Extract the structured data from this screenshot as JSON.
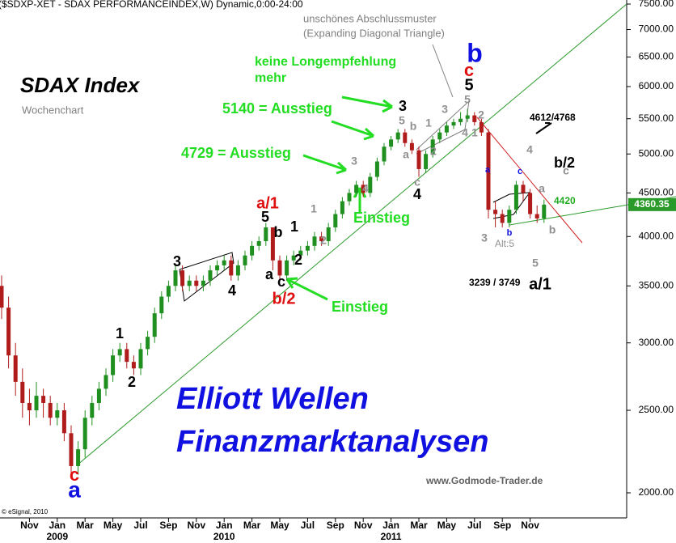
{
  "chart_data": {
    "type": "candlestick",
    "header": "($SDXP-XET - SDAX PERFORMANCEINDEX,W) Dynamic,0:00-24:00",
    "title": "SDAX Index",
    "subtitle": "Wochenchart",
    "categories": [
      null,
      null,
      null,
      null,
      "Nov",
      null,
      null,
      null,
      "Jan",
      null,
      null,
      null,
      "Mar",
      null,
      null,
      null,
      "May",
      null,
      null,
      null,
      "Jul",
      null,
      null,
      null,
      "Sep",
      null,
      null,
      null,
      "Nov",
      null,
      null,
      null,
      "Jan",
      null,
      null,
      null,
      "Mar",
      null,
      null,
      null,
      "May",
      null,
      null,
      null,
      "Jul",
      null,
      null,
      null,
      "Sep",
      null,
      null,
      null,
      "Nov",
      null,
      null,
      null,
      "Jan",
      null,
      null,
      null,
      "Mar",
      null,
      null,
      null,
      "May",
      null,
      null,
      null,
      "Jul",
      null,
      null,
      null,
      "Sep",
      null,
      null,
      null,
      "Nov",
      null,
      null
    ],
    "years": [
      null,
      null,
      null,
      null,
      null,
      null,
      null,
      null,
      "2009",
      null,
      null,
      null,
      null,
      null,
      null,
      null,
      null,
      null,
      null,
      null,
      null,
      null,
      null,
      null,
      null,
      null,
      null,
      null,
      null,
      null,
      null,
      null,
      "2010",
      null,
      null,
      null,
      null,
      null,
      null,
      null,
      null,
      null,
      null,
      null,
      null,
      null,
      null,
      null,
      null,
      null,
      null,
      null,
      null,
      null,
      null,
      null,
      "2011",
      null,
      null,
      null,
      null,
      null,
      null,
      null,
      null,
      null,
      null,
      null,
      null,
      null,
      null,
      null,
      null,
      null,
      null,
      null,
      null,
      null,
      null
    ],
    "open": [
      3500,
      3300,
      2900,
      2700,
      2550,
      2500,
      2600,
      2550,
      2450,
      2500,
      2350,
      2150,
      2250,
      2450,
      2550,
      2650,
      2750,
      2900,
      2950,
      2850,
      2800,
      2950,
      3050,
      3250,
      3400,
      3500,
      3650,
      3500,
      3550,
      3500,
      3550,
      3650,
      3700,
      3750,
      3600,
      3700,
      3800,
      3900,
      3950,
      4100,
      3750,
      3600,
      3750,
      3800,
      3850,
      3900,
      4000,
      3950,
      4100,
      4250,
      4400,
      4500,
      4600,
      4500,
      4700,
      4900,
      5100,
      5200,
      5300,
      5150,
      5050,
      4800,
      5000,
      5200,
      5300,
      5400,
      5450,
      5500,
      5550,
      5450,
      5300,
      4300,
      4250,
      4150,
      4300,
      4600,
      4500,
      4250,
      4200
    ],
    "high": [
      3600,
      3400,
      3000,
      2800,
      2650,
      2700,
      2650,
      2600,
      2550,
      2550,
      2400,
      2300,
      2500,
      2600,
      2700,
      2800,
      2950,
      3000,
      3000,
      2900,
      3000,
      3100,
      3300,
      3450,
      3550,
      3700,
      3700,
      3600,
      3600,
      3600,
      3700,
      3750,
      3800,
      3800,
      3750,
      3850,
      3950,
      4000,
      4150,
      4100,
      3800,
      3800,
      3850,
      3900,
      3950,
      4050,
      4050,
      4150,
      4300,
      4450,
      4550,
      4650,
      4650,
      4750,
      4950,
      5150,
      5250,
      5350,
      5350,
      5200,
      5100,
      5050,
      5250,
      5350,
      5450,
      5500,
      5600,
      5650,
      5600,
      5500,
      5350,
      4400,
      4300,
      4350,
      4650,
      4650,
      4550,
      4350,
      4420
    ],
    "low": [
      3200,
      2800,
      2600,
      2450,
      2400,
      2450,
      2450,
      2400,
      2400,
      2300,
      2100,
      2100,
      2200,
      2400,
      2500,
      2600,
      2700,
      2850,
      2800,
      2750,
      2750,
      2900,
      3000,
      3200,
      3350,
      3450,
      3450,
      3450,
      3450,
      3450,
      3500,
      3600,
      3650,
      3550,
      3550,
      3650,
      3750,
      3850,
      3900,
      3650,
      3550,
      3550,
      3700,
      3750,
      3800,
      3850,
      3900,
      3900,
      4050,
      4200,
      4350,
      4450,
      4450,
      4450,
      4650,
      4850,
      5050,
      5150,
      5100,
      5000,
      4700,
      4750,
      4950,
      5150,
      5250,
      5350,
      5400,
      5450,
      5400,
      5250,
      4200,
      4100,
      4100,
      4100,
      4250,
      4400,
      4200,
      4150,
      4150
    ],
    "close": [
      3300,
      2900,
      2700,
      2550,
      2500,
      2600,
      2550,
      2450,
      2500,
      2350,
      2150,
      2250,
      2450,
      2550,
      2650,
      2750,
      2900,
      2950,
      2850,
      2800,
      2950,
      3050,
      3250,
      3400,
      3500,
      3650,
      3500,
      3550,
      3500,
      3550,
      3650,
      3700,
      3750,
      3600,
      3700,
      3800,
      3900,
      3950,
      4100,
      3750,
      3600,
      3750,
      3800,
      3850,
      3900,
      4000,
      3950,
      4100,
      4250,
      4400,
      4500,
      4600,
      4500,
      4700,
      4900,
      5100,
      5200,
      5300,
      5150,
      5050,
      4800,
      5000,
      5200,
      5300,
      5400,
      5450,
      5500,
      5550,
      5450,
      5300,
      4300,
      4250,
      4150,
      4300,
      4600,
      4500,
      4250,
      4200,
      4360.35
    ],
    "last_label": "4360.35",
    "up_color": "#1f8f1f",
    "down_color": "#b01c1c",
    "ylim": [
      2000,
      7500
    ],
    "log_scale": true,
    "yticks": [
      {
        "value": 2000,
        "label": "2000.00"
      },
      {
        "value": 2500,
        "label": "2500.00"
      },
      {
        "value": 3000,
        "label": "3000.00"
      },
      {
        "value": 3500,
        "label": "3500.00"
      },
      {
        "value": 4000,
        "label": "4000.00"
      },
      {
        "value": 4500,
        "label": "4500.00"
      },
      {
        "value": 5000,
        "label": "5000.00"
      },
      {
        "value": 5500,
        "label": "5500.00"
      },
      {
        "value": 6000,
        "label": "6000.00"
      },
      {
        "value": 6500,
        "label": "6500.00"
      },
      {
        "value": 7000,
        "label": "7000.00"
      },
      {
        "value": 7500,
        "label": "7500.00"
      }
    ],
    "annotations": [
      {
        "text": "unschönes Abschlussmuster",
        "color": "#808080"
      },
      {
        "text": "(Expanding Diagonal Triangle)",
        "color": "#808080"
      },
      {
        "text": "keine Longempfehlung",
        "color": "#22dd22"
      },
      {
        "text": "mehr",
        "color": "#22dd22"
      },
      {
        "text": "5140 = Ausstieg",
        "color": "#22dd22"
      },
      {
        "text": "4729 = Ausstieg",
        "color": "#22dd22"
      },
      {
        "text": "Einstieg",
        "color": "#22dd22"
      },
      {
        "text": "Einstieg",
        "color": "#22dd22"
      },
      {
        "text": "Elliott Wellen",
        "color": "#1010e0"
      },
      {
        "text": "Finanzmarktanalysen",
        "color": "#1010e0"
      },
      {
        "text": "www.Godmode-Trader.de",
        "color": "#606060"
      },
      {
        "text": "© eSignal, 2010",
        "color": "#000000"
      },
      {
        "text": "3239 / 3749",
        "color": "#000000"
      },
      {
        "text": "4612/4768",
        "color": "#000000"
      },
      {
        "text": "Alt:5",
        "color": "#909090"
      },
      {
        "text": "4420",
        "color": "#22aa22"
      },
      {
        "text": "c",
        "color": "#e01010"
      },
      {
        "text": "a",
        "color": "#1010e0"
      },
      {
        "text": "1",
        "color": "#000000"
      },
      {
        "text": "2",
        "color": "#000000"
      },
      {
        "text": "3",
        "color": "#000000"
      },
      {
        "text": "4",
        "color": "#000000"
      },
      {
        "text": "a/1",
        "color": "#e01010"
      },
      {
        "text": "5",
        "color": "#000000"
      },
      {
        "text": "b",
        "color": "#000000"
      },
      {
        "text": "1",
        "color": "#000000"
      },
      {
        "text": "2",
        "color": "#000000"
      },
      {
        "text": "a",
        "color": "#000000"
      },
      {
        "text": "c",
        "color": "#000000"
      },
      {
        "text": "b/2",
        "color": "#e01010"
      },
      {
        "text": "1",
        "color": "#909090"
      },
      {
        "text": "2",
        "color": "#909090"
      },
      {
        "text": "3",
        "color": "#909090"
      },
      {
        "text": "4",
        "color": "#909090"
      },
      {
        "text": "3",
        "color": "#000000"
      },
      {
        "text": "5",
        "color": "#909090"
      },
      {
        "text": "b",
        "color": "#909090"
      },
      {
        "text": "a",
        "color": "#909090"
      },
      {
        "text": "c",
        "color": "#909090"
      },
      {
        "text": "4",
        "color": "#000000"
      },
      {
        "text": "1",
        "color": "#909090"
      },
      {
        "text": "2",
        "color": "#909090"
      },
      {
        "text": "3",
        "color": "#909090"
      },
      {
        "text": "5",
        "color": "#909090"
      },
      {
        "text": "4",
        "color": "#909090"
      },
      {
        "text": "1",
        "color": "#909090"
      },
      {
        "text": "2",
        "color": "#909090"
      },
      {
        "text": "5",
        "color": "#000000"
      },
      {
        "text": "c",
        "color": "#e01010"
      },
      {
        "text": "b",
        "color": "#1010e0"
      },
      {
        "text": "a",
        "color": "#1010e0"
      },
      {
        "text": "b",
        "color": "#1010e0"
      },
      {
        "text": "c",
        "color": "#1010e0"
      },
      {
        "text": "3",
        "color": "#909090"
      },
      {
        "text": "4",
        "color": "#909090"
      },
      {
        "text": "5",
        "color": "#909090"
      },
      {
        "text": "a",
        "color": "#909090"
      },
      {
        "text": "b",
        "color": "#909090"
      },
      {
        "text": "c",
        "color": "#909090"
      },
      {
        "text": "b/2",
        "color": "#000000"
      },
      {
        "text": "a/1",
        "color": "#000000"
      }
    ]
  }
}
